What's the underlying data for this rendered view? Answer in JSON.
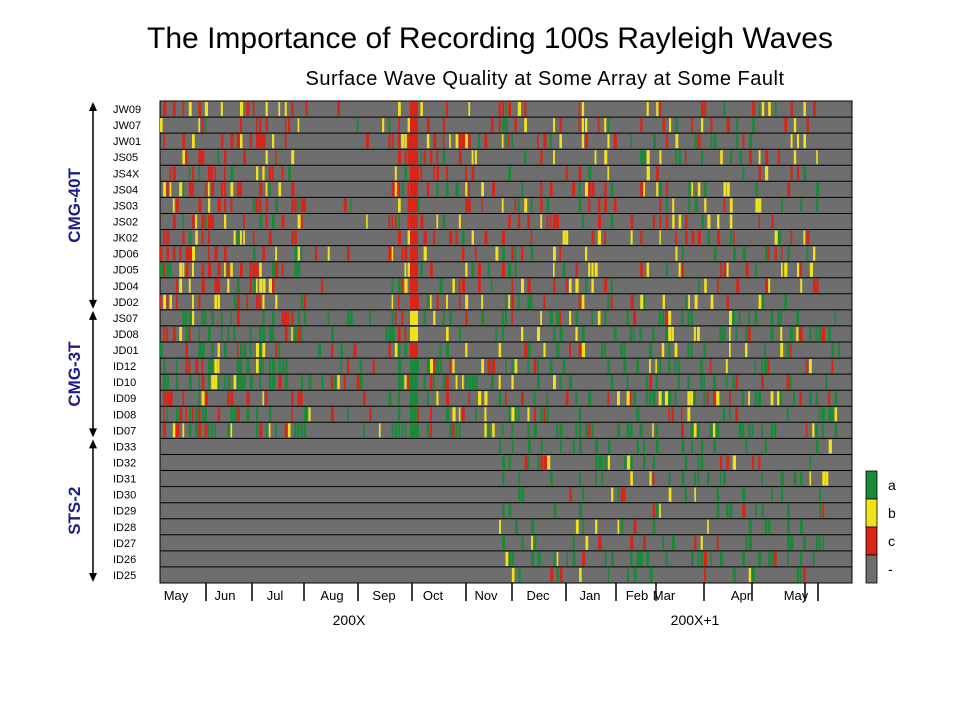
{
  "slide_title": "The Importance of Recording 100s Rayleigh Waves",
  "chart_data": {
    "type": "heatmap",
    "title": "Surface Wave Quality at Some Array at Some Fault",
    "stations": [
      "JW09",
      "JW07",
      "JW01",
      "JS05",
      "JS4X",
      "JS04",
      "JS03",
      "JS02",
      "JK02",
      "JD06",
      "JD05",
      "JD04",
      "JD02",
      "JS07",
      "JD08",
      "JD01",
      "ID12",
      "ID10",
      "ID09",
      "ID08",
      "ID07",
      "ID33",
      "ID32",
      "ID31",
      "ID30",
      "ID29",
      "ID28",
      "ID27",
      "ID26",
      "ID25"
    ],
    "groups": [
      {
        "name": "CMG-40T",
        "stations": [
          "JW09",
          "JW07",
          "JW01",
          "JS05",
          "JS4X",
          "JS04",
          "JS03",
          "JS02",
          "JK02",
          "JD06",
          "JD05",
          "JD04",
          "JD02"
        ]
      },
      {
        "name": "CMG-3T",
        "stations": [
          "JS07",
          "JD08",
          "JD01",
          "ID12",
          "ID10",
          "ID09",
          "ID08",
          "ID07"
        ]
      },
      {
        "name": "STS-2",
        "stations": [
          "ID33",
          "ID32",
          "ID31",
          "ID30",
          "ID29",
          "ID28",
          "ID27",
          "ID26",
          "ID25"
        ]
      }
    ],
    "months": [
      "May",
      "Jun",
      "Jul",
      "Aug",
      "Sep",
      "Oct",
      "Nov",
      "Dec",
      "Jan",
      "Feb",
      "Mar",
      "Apr",
      "May"
    ],
    "years": [
      {
        "label": "200X",
        "months": [
          "May",
          "Jun",
          "Jul",
          "Aug",
          "Sep",
          "Oct",
          "Nov",
          "Dec"
        ]
      },
      {
        "label": "200X+1",
        "months": [
          "Jan",
          "Feb",
          "Mar",
          "Apr",
          "May"
        ]
      }
    ],
    "legend": [
      {
        "label": "a",
        "color": "#1a8a3a"
      },
      {
        "label": "b",
        "color": "#f2e21c"
      },
      {
        "label": "c",
        "color": "#d92418"
      },
      {
        "label": "-",
        "color": "#6e6e6e"
      }
    ],
    "background_color": "#6e6e6e",
    "quality_codes": {
      "a": 1,
      "b": 2,
      "c": 3,
      "-": 0
    },
    "month_range": [
      0,
      14.5
    ]
  }
}
